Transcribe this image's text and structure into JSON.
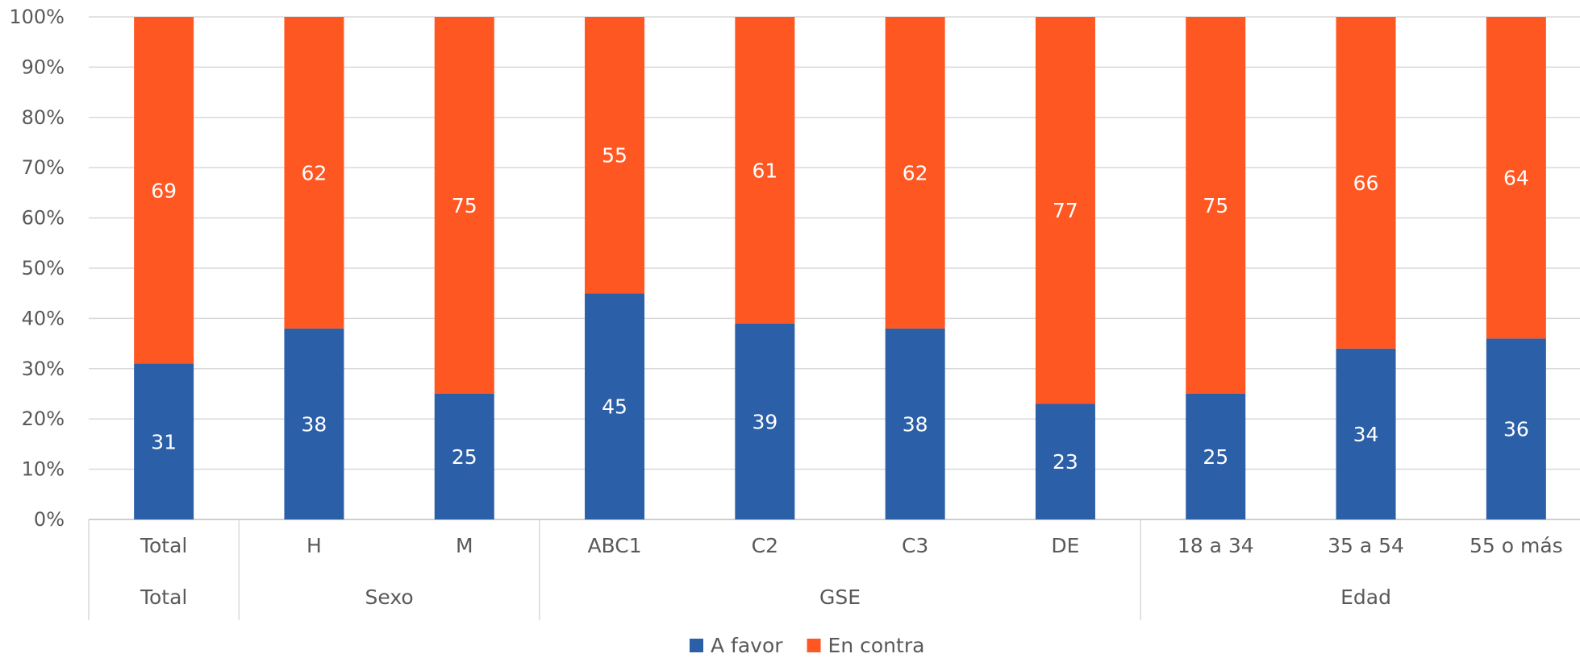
{
  "chart_data": {
    "type": "bar",
    "stacked": true,
    "percent_stacked": true,
    "title": "",
    "xlabel": "",
    "ylabel": "",
    "ylim": [
      0,
      100
    ],
    "yticks": [
      "0%",
      "10%",
      "20%",
      "30%",
      "40%",
      "50%",
      "60%",
      "70%",
      "80%",
      "90%",
      "100%"
    ],
    "grid": true,
    "legend_position": "bottom",
    "categories": [
      "Total",
      "H",
      "M",
      "ABC1",
      "C2",
      "C3",
      "DE",
      "18 a 34",
      "35 a 54",
      "55 o más"
    ],
    "groups": [
      {
        "label": "Total",
        "categories": [
          "Total"
        ]
      },
      {
        "label": "Sexo",
        "categories": [
          "H",
          "M"
        ]
      },
      {
        "label": "GSE",
        "categories": [
          "ABC1",
          "C2",
          "C3",
          "DE"
        ]
      },
      {
        "label": "Edad",
        "categories": [
          "18 a 34",
          "35 a 54",
          "55 o más"
        ]
      }
    ],
    "series": [
      {
        "name": "A favor",
        "color": "#2B5FA8",
        "values": [
          31,
          38,
          25,
          45,
          39,
          38,
          23,
          25,
          34,
          36
        ]
      },
      {
        "name": "En contra",
        "color": "#FF5722",
        "values": [
          69,
          62,
          75,
          55,
          61,
          62,
          77,
          75,
          66,
          64
        ]
      }
    ]
  }
}
